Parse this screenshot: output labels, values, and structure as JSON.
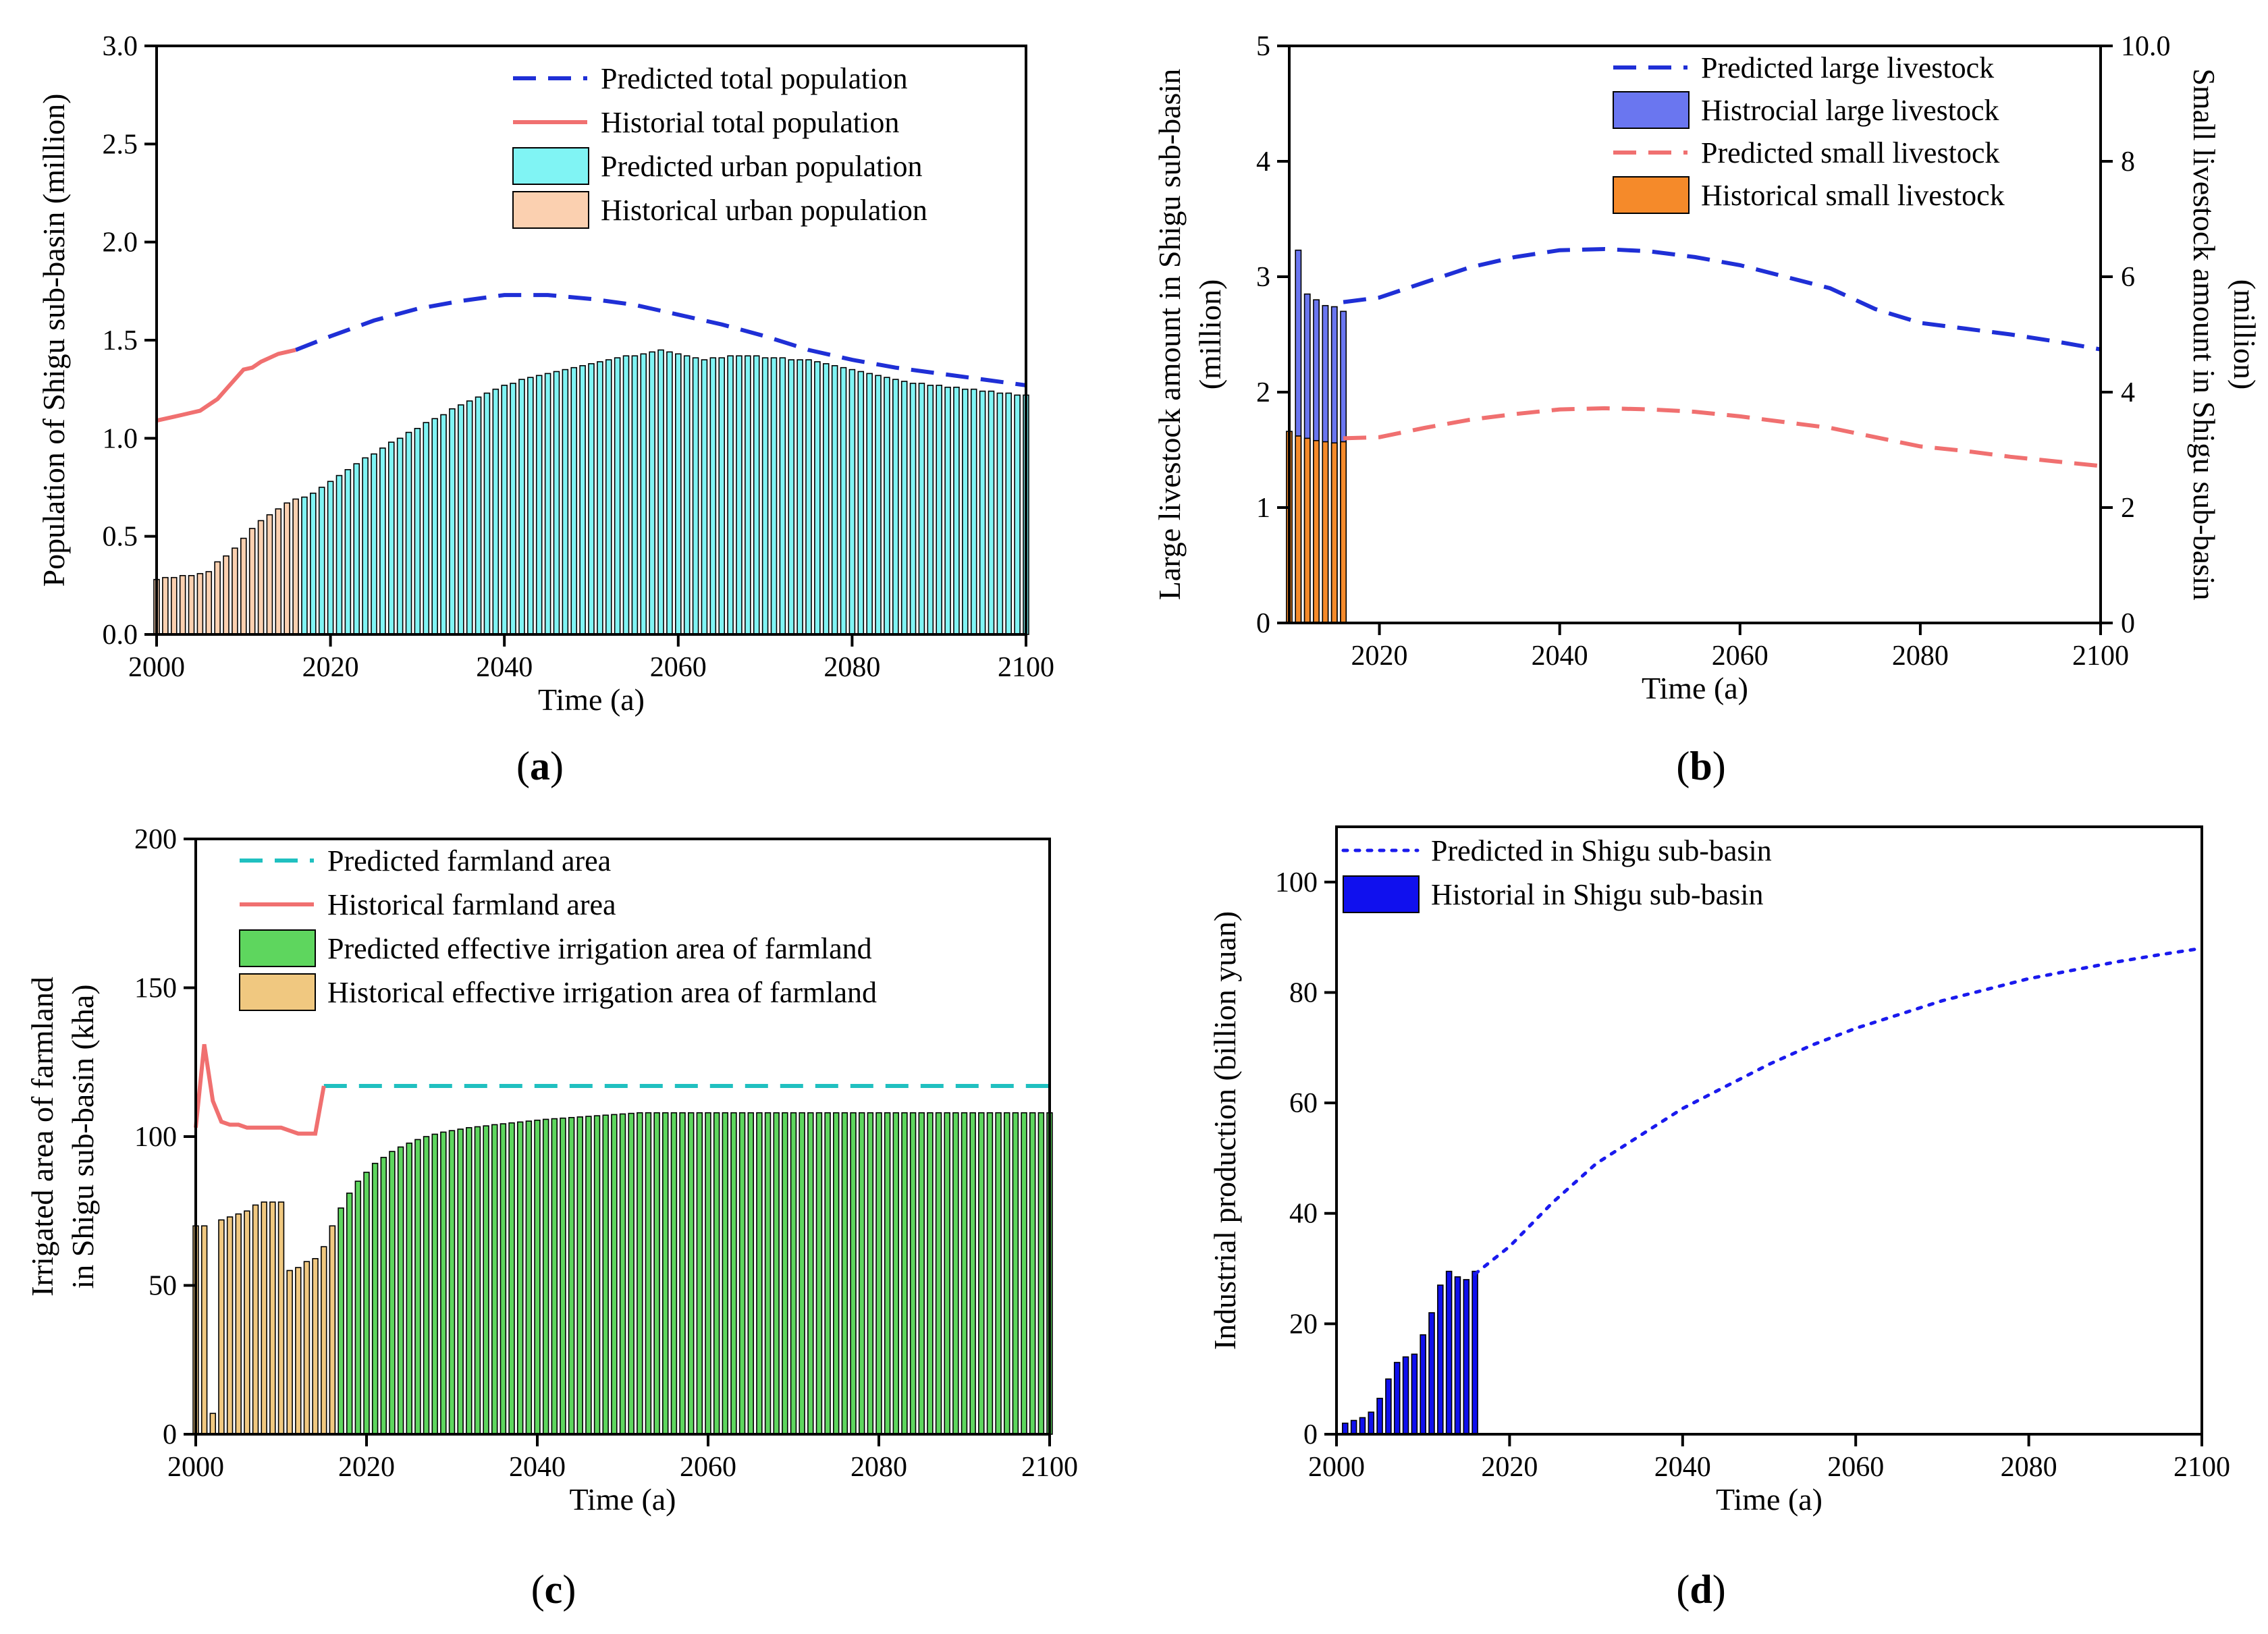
{
  "chart_data": [
    {
      "panel": "(a)",
      "type": "bar",
      "xlabel": "Time (a)",
      "ylabel": "Population of Shigu sub-basin (million)",
      "xlim": [
        2000,
        2100
      ],
      "ylim": [
        0,
        3.0
      ],
      "xticks": [
        "2000",
        "2020",
        "2040",
        "2060",
        "2080",
        "2100"
      ],
      "yticks": [
        "0.0",
        "0.5",
        "1.0",
        "1.5",
        "2.0",
        "2.5",
        "3.0"
      ],
      "legend_position": "top-right",
      "series": [
        {
          "name": "Predicted total population",
          "kind": "line",
          "style": "dashed",
          "color": "#1f2fd6",
          "x": [
            2016,
            2020,
            2025,
            2030,
            2035,
            2040,
            2045,
            2050,
            2055,
            2060,
            2065,
            2070,
            2075,
            2080,
            2085,
            2090,
            2095,
            2100
          ],
          "y": [
            1.45,
            1.52,
            1.6,
            1.66,
            1.7,
            1.73,
            1.73,
            1.71,
            1.68,
            1.63,
            1.58,
            1.52,
            1.45,
            1.4,
            1.36,
            1.33,
            1.3,
            1.27
          ]
        },
        {
          "name": "Historial total population",
          "kind": "line",
          "style": "solid",
          "color": "#f07070",
          "x": [
            2000,
            2001,
            2002,
            2003,
            2004,
            2005,
            2006,
            2007,
            2008,
            2009,
            2010,
            2011,
            2012,
            2013,
            2014,
            2015,
            2016
          ],
          "y": [
            1.09,
            1.1,
            1.11,
            1.12,
            1.13,
            1.14,
            1.17,
            1.2,
            1.25,
            1.3,
            1.35,
            1.36,
            1.39,
            1.41,
            1.43,
            1.44,
            1.45
          ]
        },
        {
          "name": "Predicted urban population",
          "kind": "bar",
          "color": "#80f4f4",
          "x_start": 2017,
          "x_step": 1,
          "y": [
            0.7,
            0.72,
            0.75,
            0.78,
            0.81,
            0.84,
            0.87,
            0.9,
            0.92,
            0.95,
            0.98,
            1.0,
            1.03,
            1.05,
            1.08,
            1.1,
            1.12,
            1.15,
            1.17,
            1.19,
            1.21,
            1.23,
            1.25,
            1.27,
            1.28,
            1.3,
            1.31,
            1.32,
            1.33,
            1.34,
            1.35,
            1.36,
            1.37,
            1.38,
            1.39,
            1.4,
            1.41,
            1.42,
            1.42,
            1.43,
            1.44,
            1.45,
            1.44,
            1.43,
            1.42,
            1.41,
            1.4,
            1.41,
            1.41,
            1.42,
            1.42,
            1.42,
            1.42,
            1.41,
            1.41,
            1.41,
            1.4,
            1.4,
            1.4,
            1.39,
            1.38,
            1.37,
            1.36,
            1.35,
            1.34,
            1.33,
            1.32,
            1.31,
            1.3,
            1.29,
            1.28,
            1.28,
            1.27,
            1.27,
            1.26,
            1.26,
            1.25,
            1.25,
            1.24,
            1.24,
            1.23,
            1.23,
            1.22,
            1.22
          ]
        },
        {
          "name": "Historical urban population",
          "kind": "bar",
          "color": "#fbd0b0",
          "x_start": 2000,
          "x_step": 1,
          "y": [
            0.28,
            0.29,
            0.29,
            0.3,
            0.3,
            0.31,
            0.32,
            0.37,
            0.4,
            0.44,
            0.49,
            0.54,
            0.58,
            0.61,
            0.64,
            0.67,
            0.69
          ]
        }
      ]
    },
    {
      "panel": "(b)",
      "type": "bar",
      "xlabel": "Time (a)",
      "ylabel": "Large livestock amount in Shigu sub-basin (million)",
      "ylabel_right": "Small livestock amount in Shigu sub-basin (million)",
      "xlim": [
        2010,
        2100
      ],
      "ylim": [
        0,
        5
      ],
      "ylim_right": [
        0,
        10
      ],
      "xticks": [
        "2020",
        "2040",
        "2060",
        "2080",
        "2100"
      ],
      "yticks": [
        "0",
        "1",
        "2",
        "3",
        "4",
        "5"
      ],
      "yticks_right": [
        "0",
        "2",
        "4",
        "6",
        "8",
        "10.0"
      ],
      "legend_position": "top-right",
      "series": [
        {
          "name": "Predicted large livestock",
          "kind": "line",
          "style": "dashed",
          "color": "#1f2fd6",
          "axis": "left",
          "x": [
            2016,
            2020,
            2025,
            2030,
            2035,
            2040,
            2045,
            2050,
            2055,
            2060,
            2065,
            2070,
            2075,
            2080,
            2085,
            2090,
            2095,
            2100
          ],
          "y": [
            2.78,
            2.82,
            2.95,
            3.08,
            3.17,
            3.23,
            3.24,
            3.22,
            3.17,
            3.1,
            3.0,
            2.9,
            2.72,
            2.6,
            2.55,
            2.5,
            2.44,
            2.37
          ]
        },
        {
          "name": "Histrocial large livestock",
          "kind": "bar",
          "color": "#6a76f0",
          "axis": "left",
          "x": [
            2011,
            2012,
            2013,
            2014,
            2015,
            2016
          ],
          "y": [
            3.23,
            2.85,
            2.8,
            2.75,
            2.74,
            2.7
          ]
        },
        {
          "name": "Predicted small livestock",
          "kind": "line",
          "style": "dashed",
          "color": "#f07070",
          "axis": "right",
          "x": [
            2016,
            2020,
            2025,
            2030,
            2035,
            2040,
            2045,
            2050,
            2055,
            2060,
            2065,
            2070,
            2075,
            2080,
            2085,
            2090,
            2095,
            2100
          ],
          "y": [
            3.2,
            3.22,
            3.38,
            3.52,
            3.62,
            3.7,
            3.72,
            3.7,
            3.66,
            3.58,
            3.48,
            3.38,
            3.22,
            3.06,
            2.98,
            2.88,
            2.8,
            2.72
          ]
        },
        {
          "name": "Historical small livestock",
          "kind": "bar",
          "color": "#f58a2a",
          "axis": "right",
          "x": [
            2010,
            2011,
            2012,
            2013,
            2014,
            2015,
            2016
          ],
          "y": [
            3.32,
            3.24,
            3.2,
            3.16,
            3.14,
            3.12,
            3.14
          ]
        }
      ]
    },
    {
      "panel": "(c)",
      "type": "bar",
      "xlabel": "Time (a)",
      "ylabel": "Irrigated area of farmland in Shigu sub-basin (kha)",
      "xlim": [
        2000,
        2100
      ],
      "ylim": [
        0,
        200
      ],
      "xticks": [
        "2000",
        "2020",
        "2040",
        "2060",
        "2080",
        "2100"
      ],
      "yticks": [
        "0",
        "50",
        "100",
        "150",
        "200"
      ],
      "legend_position": "top-left",
      "series": [
        {
          "name": "Predicted farmland area",
          "kind": "line",
          "style": "dashed",
          "color": "#20c0c0",
          "x": [
            2015,
            2100
          ],
          "y": [
            117,
            117
          ]
        },
        {
          "name": "Historical farmland area",
          "kind": "line",
          "style": "solid",
          "color": "#f07070",
          "x": [
            2000,
            2001,
            2002,
            2003,
            2004,
            2005,
            2006,
            2007,
            2008,
            2009,
            2010,
            2011,
            2012,
            2013,
            2014,
            2015
          ],
          "y": [
            103,
            131,
            112,
            105,
            104,
            104,
            103,
            103,
            103,
            103,
            103,
            102,
            101,
            101,
            101,
            117
          ]
        },
        {
          "name": "Predicted  effective irrigation area of farmland",
          "kind": "bar",
          "color": "#5ed65e",
          "x_start": 2016,
          "x_step": 1,
          "y": [
            70,
            76,
            81,
            85,
            88,
            91,
            93,
            95,
            96.5,
            97.8,
            99,
            100,
            100.8,
            101.5,
            102,
            102.5,
            103,
            103.3,
            103.6,
            104,
            104.3,
            104.6,
            104.9,
            105.2,
            105.5,
            105.8,
            106,
            106.2,
            106.4,
            106.6,
            106.8,
            107,
            107.2,
            107.4,
            107.6,
            107.8,
            108,
            108,
            108,
            108,
            108,
            108,
            108,
            108,
            108,
            108,
            108,
            108,
            108,
            108,
            108,
            108,
            108,
            108,
            108,
            108,
            108,
            108,
            108,
            108,
            108,
            108,
            108,
            108,
            108,
            108,
            108,
            108,
            108,
            108,
            108,
            108,
            108,
            108,
            108,
            108,
            108,
            108,
            108,
            108,
            108,
            108,
            108,
            108,
            108
          ]
        },
        {
          "name": "Historical  effective irrigation area of farmland",
          "kind": "bar",
          "color": "#f0c880",
          "x_start": 2000,
          "x_step": 1,
          "y": [
            70,
            70,
            7,
            72,
            73,
            74,
            75,
            77,
            78,
            78,
            78,
            55,
            56,
            58,
            59,
            63,
            70
          ]
        }
      ]
    },
    {
      "panel": "(d)",
      "type": "bar",
      "xlabel": "Time (a)",
      "ylabel": "Industrial production (billion yuan)",
      "xlim": [
        2000,
        2100
      ],
      "ylim": [
        0,
        110
      ],
      "xticks": [
        "2000",
        "2020",
        "2040",
        "2060",
        "2080",
        "2100"
      ],
      "yticks": [
        "0",
        "20",
        "40",
        "60",
        "80",
        "100"
      ],
      "legend_position": "top-left",
      "series": [
        {
          "name": "Predicted in Shigu sub-basin",
          "kind": "line",
          "style": "dotted",
          "color": "#1a1aee",
          "x": [
            2016,
            2020,
            2025,
            2030,
            2035,
            2040,
            2045,
            2050,
            2055,
            2060,
            2065,
            2070,
            2075,
            2080,
            2085,
            2090,
            2095,
            2100
          ],
          "y": [
            29,
            34,
            42,
            49,
            54,
            59,
            63,
            67,
            70.5,
            73.5,
            76,
            78.5,
            80.5,
            82.5,
            84,
            85.5,
            86.8,
            88
          ]
        },
        {
          "name": "Historial in Shigu sub-basin",
          "kind": "bar",
          "color": "#1010ee",
          "x": [
            2001,
            2002,
            2003,
            2004,
            2005,
            2006,
            2007,
            2008,
            2009,
            2010,
            2011,
            2012,
            2013,
            2014,
            2015,
            2016
          ],
          "y": [
            2,
            2.5,
            3,
            4,
            6.5,
            10,
            13,
            14,
            14.5,
            18,
            22,
            27,
            29.5,
            28.5,
            28,
            29.5
          ]
        }
      ]
    }
  ],
  "panel_labels": [
    "(a)",
    "(b)",
    "(c)",
    "(d)"
  ]
}
